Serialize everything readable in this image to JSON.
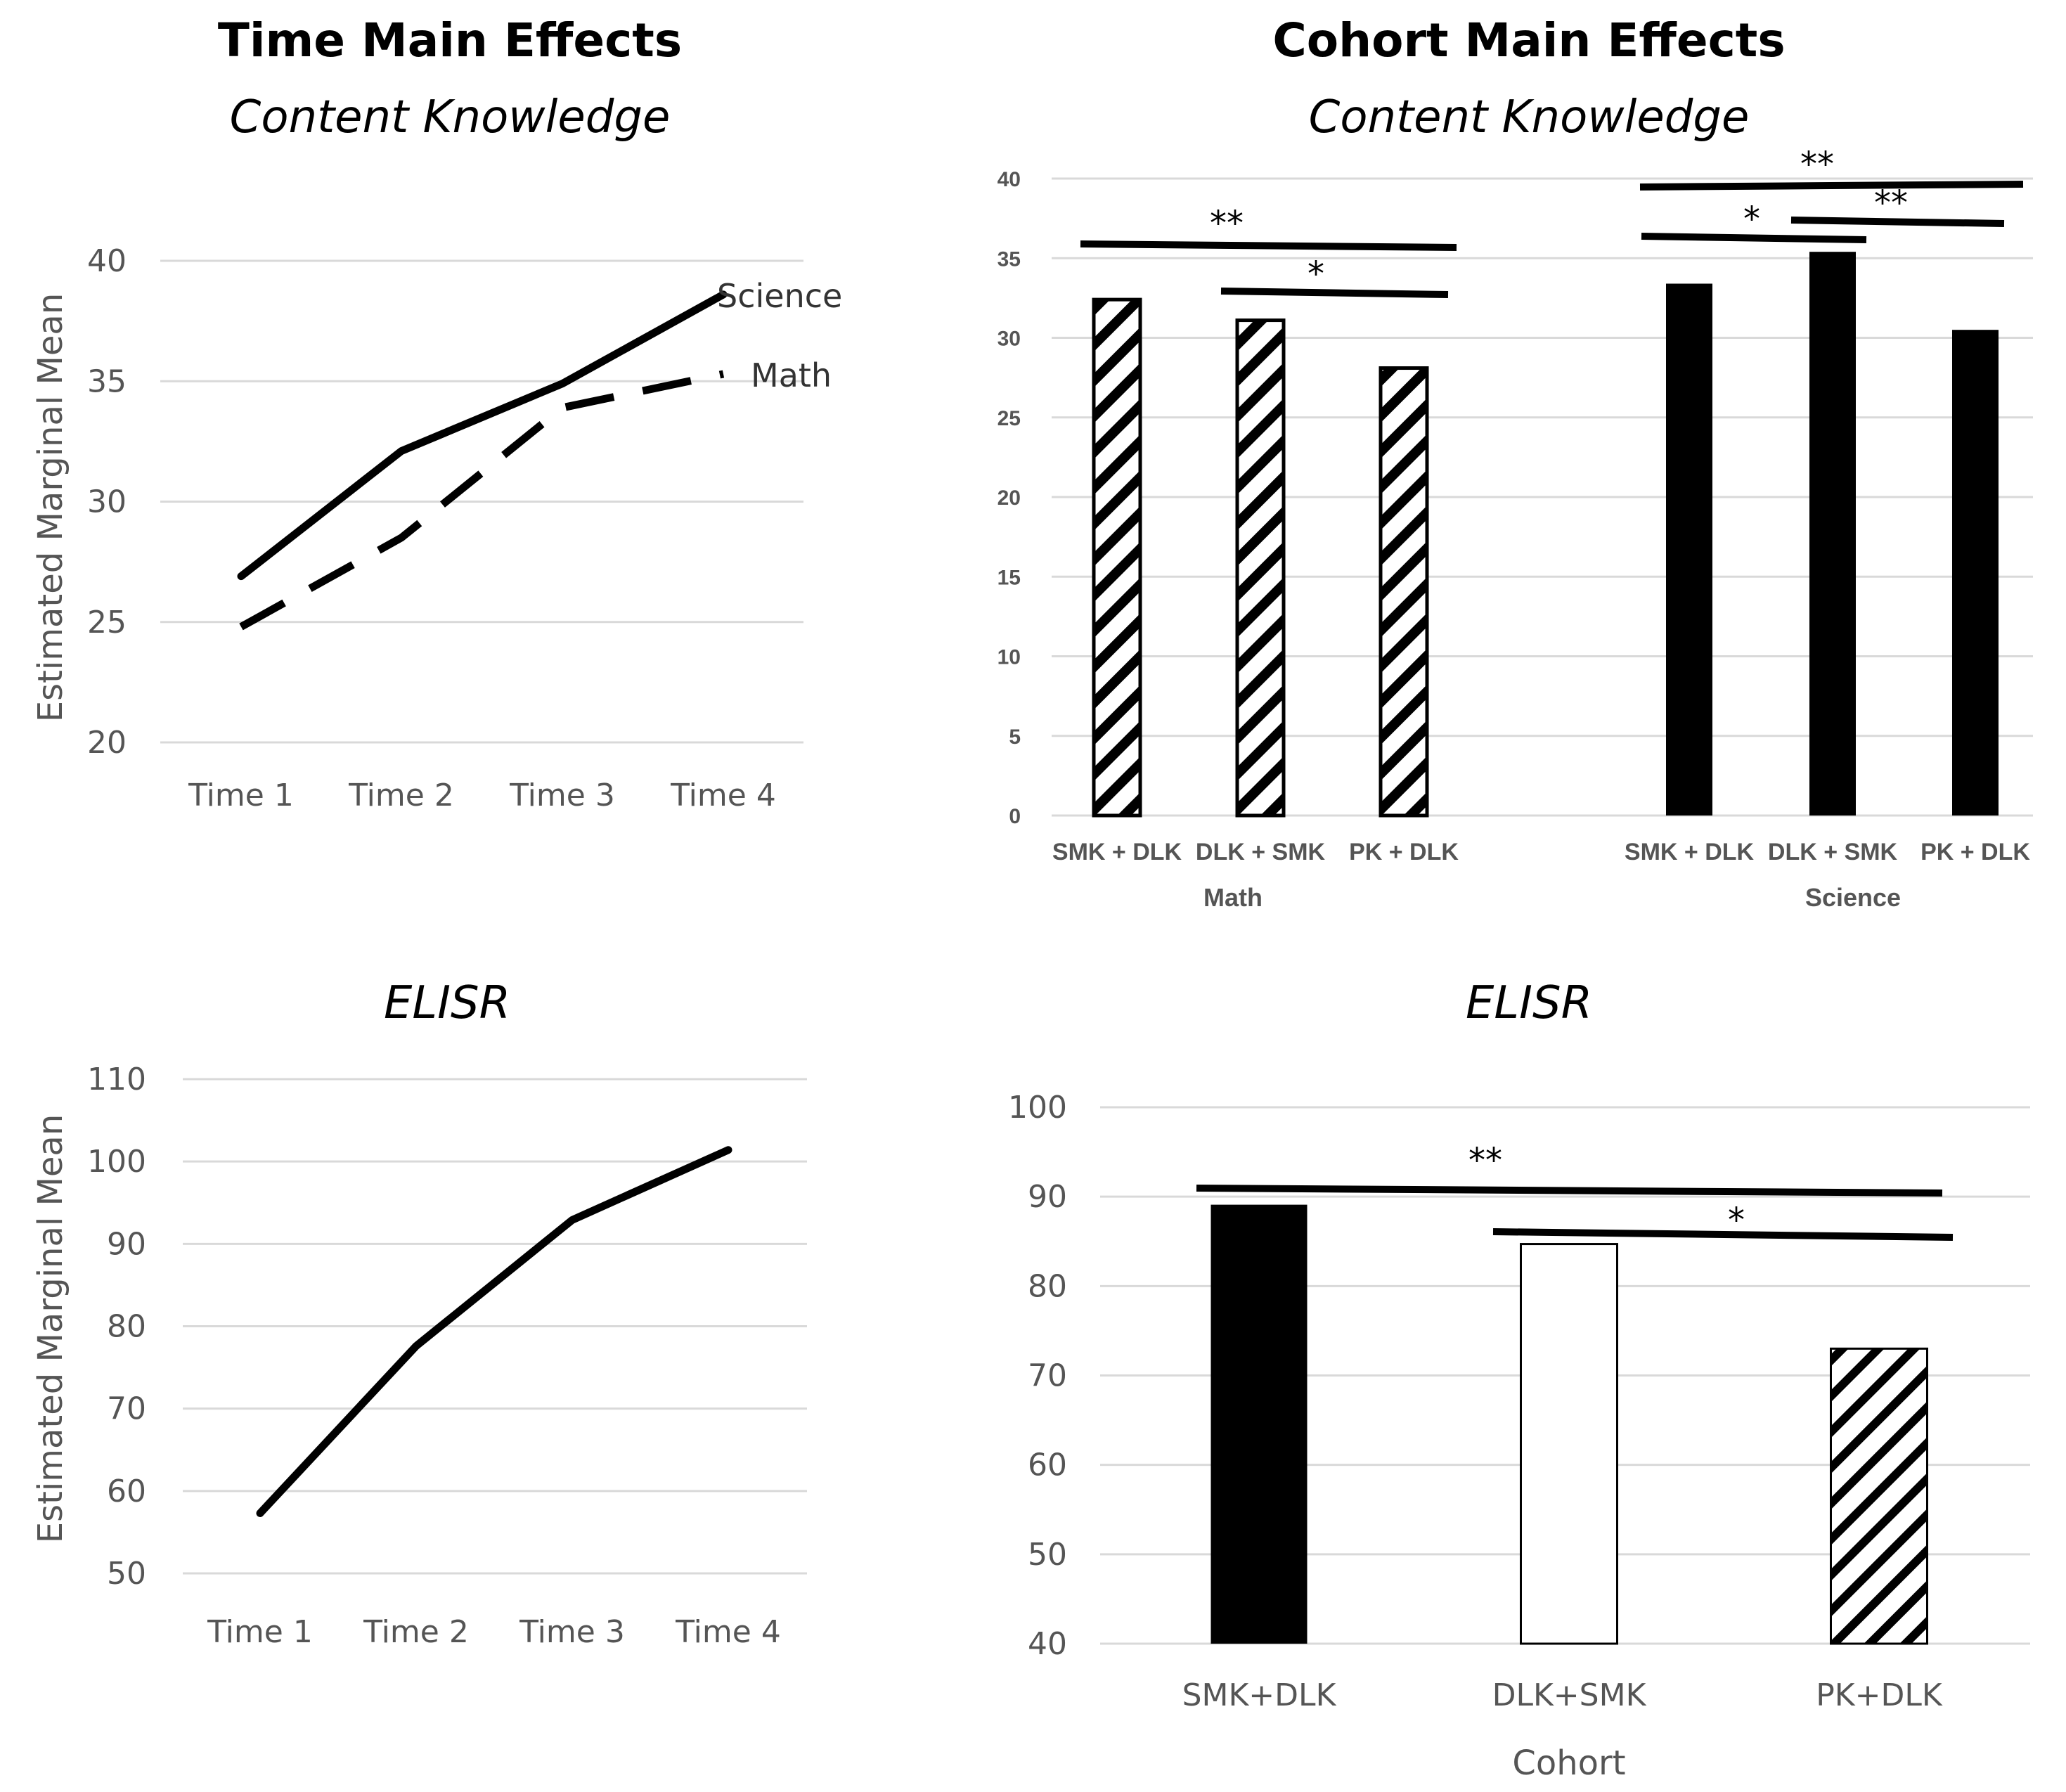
{
  "headers": {
    "left": "Time Main Effects",
    "right": "Cohort Main Effects"
  },
  "chart_data": [
    {
      "id": "time_ck",
      "type": "line",
      "title": "Content Knowledge",
      "xlabel": "",
      "ylabel": "Estimated Marginal Mean",
      "categories": [
        "Time 1",
        "Time 2",
        "Time 3",
        "Time 4"
      ],
      "ylim": [
        20,
        40
      ],
      "yticks": [
        20,
        25,
        30,
        35,
        40
      ],
      "grid": true,
      "series": [
        {
          "name": "Science",
          "style": "solid",
          "values": [
            26.9,
            32.1,
            34.9,
            38.6
          ]
        },
        {
          "name": "Math",
          "style": "dashed",
          "values": [
            24.8,
            28.5,
            33.9,
            35.3
          ]
        }
      ]
    },
    {
      "id": "cohort_ck",
      "type": "bar",
      "title": "Content Knowledge",
      "xlabel": "",
      "ylabel": "",
      "ylim": [
        0,
        40
      ],
      "yticks": [
        0,
        5,
        10,
        15,
        20,
        25,
        30,
        35,
        40
      ],
      "grid": true,
      "groups": [
        {
          "name": "Math",
          "fill": "hatch",
          "categories": [
            "SMK + DLK",
            "DLK + SMK",
            "PK + DLK"
          ],
          "values": [
            32.4,
            31.1,
            28.1
          ]
        },
        {
          "name": "Science",
          "fill": "solid",
          "categories": [
            "SMK + DLK",
            "DLK + SMK",
            "PK + DLK"
          ],
          "values": [
            33.4,
            35.4,
            30.5
          ]
        }
      ],
      "significance": [
        {
          "group": 0,
          "from": 0,
          "to": 2,
          "label": "**"
        },
        {
          "group": 0,
          "from": 1,
          "to": 2,
          "label": "*"
        },
        {
          "group": 1,
          "from": 0,
          "to": 2,
          "label": "**"
        },
        {
          "group": 1,
          "from": 0,
          "to": 1,
          "label": "*"
        },
        {
          "group": 1,
          "from": 1,
          "to": 2,
          "label": "**"
        }
      ]
    },
    {
      "id": "time_elisr",
      "type": "line",
      "title": "ELISR",
      "xlabel": "",
      "ylabel": "Estimated Marginal Mean",
      "categories": [
        "Time 1",
        "Time 2",
        "Time 3",
        "Time 4"
      ],
      "ylim": [
        50,
        110
      ],
      "yticks": [
        50,
        60,
        70,
        80,
        90,
        100,
        110
      ],
      "grid": true,
      "series": [
        {
          "style": "solid",
          "values": [
            57.3,
            77.6,
            92.9,
            101.4
          ]
        }
      ]
    },
    {
      "id": "cohort_elisr",
      "type": "bar",
      "title": "ELISR",
      "xlabel": "Cohort",
      "ylabel": "",
      "ylim": [
        40,
        100
      ],
      "yticks": [
        40,
        50,
        60,
        70,
        80,
        90,
        100
      ],
      "grid": true,
      "categories": [
        "SMK+DLK",
        "DLK+SMK",
        "PK+DLK"
      ],
      "values": [
        89.1,
        84.7,
        73.0
      ],
      "fills": [
        "solid",
        "white",
        "hatch"
      ],
      "significance": [
        {
          "from": 0,
          "to": 2,
          "label": "**"
        },
        {
          "from": 1,
          "to": 2,
          "label": "*"
        }
      ]
    }
  ]
}
